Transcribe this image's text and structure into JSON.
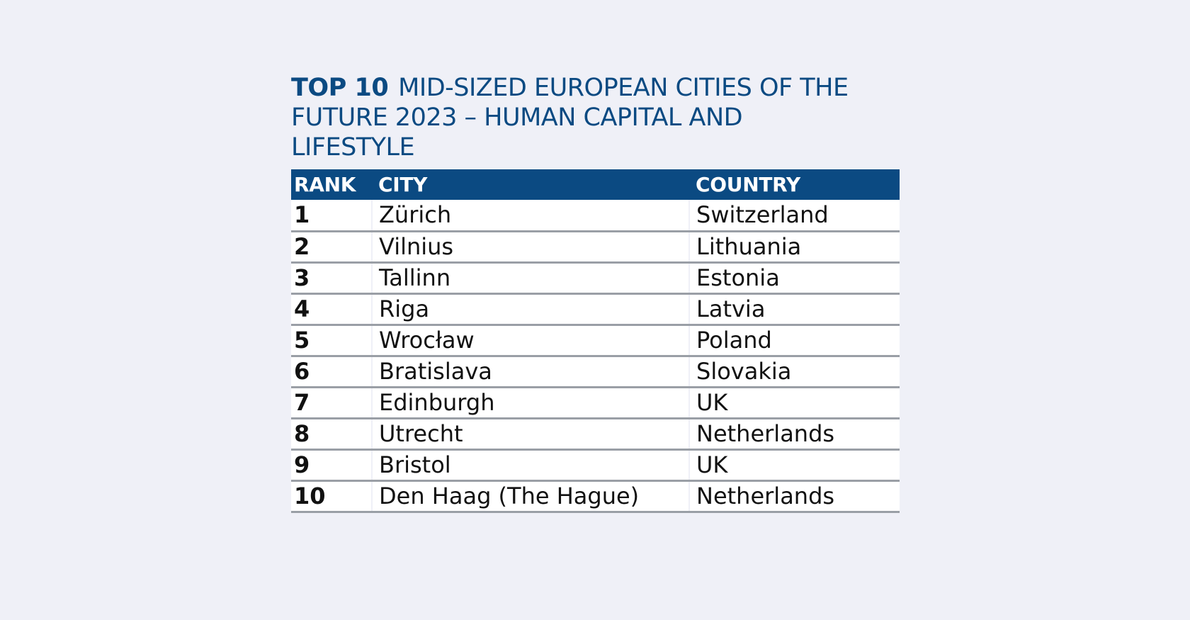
{
  "figure": {
    "title_lead": "TOP 10",
    "title_lines": [
      "MID-SIZED EUROPEAN CITIES OF THE",
      "FUTURE 2023 – HUMAN CAPITAL AND",
      "LIFESTYLE"
    ]
  },
  "colors": {
    "background": "#eff0f7",
    "accent": "#0b4a82",
    "row_rule": "#9a9fa6"
  },
  "chart_data": {
    "type": "table",
    "title": "TOP 10 MID-SIZED EUROPEAN CITIES OF THE FUTURE 2023 – HUMAN CAPITAL AND LIFESTYLE",
    "columns": [
      "RANK",
      "CITY",
      "COUNTRY"
    ],
    "rows": [
      [
        "1",
        "Zürich",
        "Switzerland"
      ],
      [
        "2",
        "Vilnius",
        "Lithuania"
      ],
      [
        "3",
        "Tallinn",
        "Estonia"
      ],
      [
        "4",
        "Riga",
        "Latvia"
      ],
      [
        "5",
        "Wrocław",
        "Poland"
      ],
      [
        "6",
        "Bratislava",
        "Slovakia"
      ],
      [
        "7",
        "Edinburgh",
        "UK"
      ],
      [
        "8",
        "Utrecht",
        "Netherlands"
      ],
      [
        "9",
        "Bristol",
        "UK"
      ],
      [
        "10",
        "Den Haag (The Hague)",
        "Netherlands"
      ]
    ]
  }
}
